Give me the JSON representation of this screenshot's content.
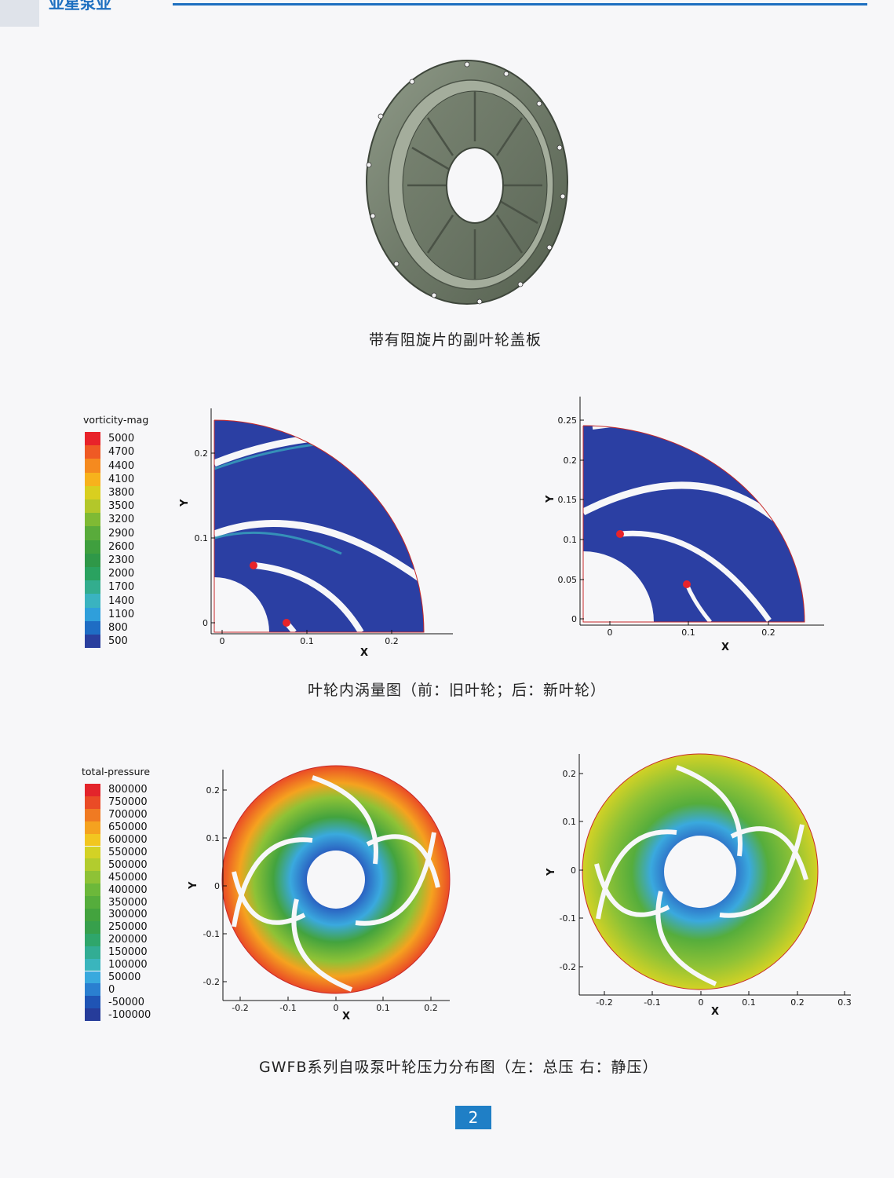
{
  "header": {
    "brand_text": "亚星泵业"
  },
  "figure1": {
    "caption": "带有阻旋片的副叶轮盖板"
  },
  "figure2": {
    "caption": "叶轮内涡量图（前：旧叶轮；后：新叶轮）",
    "legend": {
      "title": "vorticity-mag",
      "levels": [
        "5000",
        "4700",
        "4400",
        "4100",
        "3800",
        "3500",
        "3200",
        "2900",
        "2600",
        "2300",
        "2000",
        "1700",
        "1400",
        "1100",
        "800",
        "500"
      ],
      "colors": [
        "#e8232a",
        "#ef5a24",
        "#f58a1f",
        "#f7b21c",
        "#d9cf1f",
        "#b3c72a",
        "#7fba34",
        "#59ab3b",
        "#3f9f3e",
        "#2f9848",
        "#2aa260",
        "#33ad8e",
        "#3ab3c0",
        "#2f9fdb",
        "#1f6dc4",
        "#2a3f9e"
      ]
    },
    "left_plot": {
      "x_label": "X",
      "y_label": "Y",
      "x_ticks": [
        "0",
        "0.1",
        "0.2"
      ],
      "y_ticks": [
        "0",
        "0.1",
        "0.2"
      ]
    },
    "right_plot": {
      "x_label": "X",
      "y_label": "Y",
      "x_ticks": [
        "0",
        "0.1",
        "0.2"
      ],
      "y_ticks": [
        "0",
        "0.05",
        "0.1",
        "0.15",
        "0.2",
        "0.25"
      ]
    }
  },
  "figure3": {
    "caption": "GWFB系列自吸泵叶轮压力分布图（左：总压 右：静压）",
    "legend": {
      "title": "total-pressure",
      "levels": [
        "800000",
        "750000",
        "700000",
        "650000",
        "600000",
        "550000",
        "500000",
        "450000",
        "400000",
        "350000",
        "300000",
        "250000",
        "200000",
        "150000",
        "100000",
        "50000",
        "0",
        "-50000",
        "-100000"
      ],
      "colors": [
        "#e3242b",
        "#ea4b26",
        "#f07a22",
        "#f5a21f",
        "#f2c620",
        "#d3d225",
        "#b2cc2e",
        "#8ec236",
        "#6cb83a",
        "#55ad3c",
        "#43a33e",
        "#37a04c",
        "#2fa66b",
        "#32ad94",
        "#3ab5bd",
        "#39a9de",
        "#2a7fd0",
        "#1f54b5",
        "#263c9a"
      ]
    },
    "left_plot": {
      "x_label": "X",
      "y_label": "Y",
      "x_ticks": [
        "-0.2",
        "-0.1",
        "0",
        "0.1",
        "0.2"
      ],
      "y_ticks": [
        "0.2",
        "0.1",
        "0",
        "-0.1",
        "-0.2"
      ]
    },
    "right_plot": {
      "x_label": "X",
      "y_label": "Y",
      "x_ticks": [
        "-0.2",
        "-0.1",
        "0",
        "0.1",
        "0.2",
        "0.3"
      ],
      "y_ticks": [
        "0.2",
        "0.1",
        "0",
        "-0.1",
        "-0.2"
      ]
    }
  },
  "footer": {
    "page_number": "2"
  }
}
